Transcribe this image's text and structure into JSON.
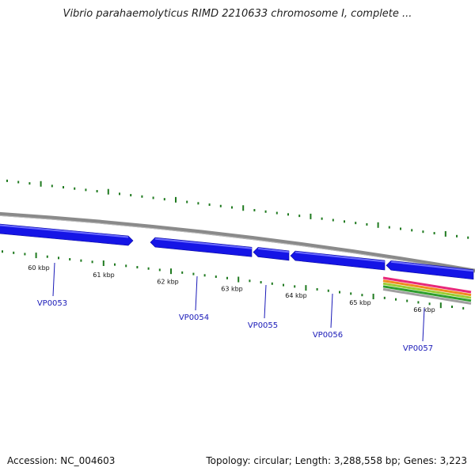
{
  "title": "Vibrio parahaemolyticus RIMD 2210633 chromosome I, complete ...",
  "footer": {
    "accession": "Accession: NC_004603",
    "summary": "Topology: circular; Length: 3,288,558 bp; Genes: 3,223"
  },
  "colors": {
    "gene": "#1515e6",
    "gene_highlight": "#6c6cff",
    "backbone": "#8a8a8a",
    "tick": "#1f7a1f",
    "label": "#1a1ab8"
  },
  "ticks": [
    {
      "label": "60 kbp",
      "kbp": 60
    },
    {
      "label": "61 kbp",
      "kbp": 61
    },
    {
      "label": "62 kbp",
      "kbp": 62
    },
    {
      "label": "63 kbp",
      "kbp": 63
    },
    {
      "label": "64 kbp",
      "kbp": 64
    },
    {
      "label": "65 kbp",
      "kbp": 65
    },
    {
      "label": "66 kbp",
      "kbp": 66
    }
  ],
  "genes": [
    {
      "name": "VP0053"
    },
    {
      "name": "VP0054"
    },
    {
      "name": "VP0055"
    },
    {
      "name": "VP0056"
    },
    {
      "name": "VP0057"
    }
  ],
  "feature_track_colors": [
    "#e8287a",
    "#f08c1e",
    "#9acd32",
    "#2e9e2e",
    "#a0a0a0"
  ]
}
